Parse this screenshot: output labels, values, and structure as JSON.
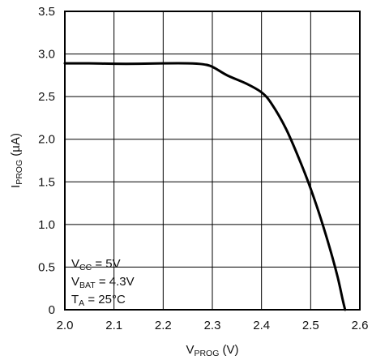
{
  "chart_data": {
    "type": "line",
    "title": "",
    "xlabel": {
      "main": "V",
      "sub": "PROG",
      "unit": " (V)"
    },
    "ylabel": {
      "main": "I",
      "sub": "PROG",
      "unit": " (µA)"
    },
    "xlim": [
      2.0,
      2.6
    ],
    "ylim": [
      0,
      3.5
    ],
    "x_ticks": [
      {
        "value": 2.0,
        "label": "2.0"
      },
      {
        "value": 2.1,
        "label": "2.1"
      },
      {
        "value": 2.2,
        "label": "2.2"
      },
      {
        "value": 2.3,
        "label": "2.3"
      },
      {
        "value": 2.4,
        "label": "2.4"
      },
      {
        "value": 2.5,
        "label": "2.5"
      },
      {
        "value": 2.6,
        "label": "2.6"
      }
    ],
    "y_ticks": [
      {
        "value": 0,
        "label": "0"
      },
      {
        "value": 0.5,
        "label": "0.5"
      },
      {
        "value": 1.0,
        "label": "1.0"
      },
      {
        "value": 1.5,
        "label": "1.5"
      },
      {
        "value": 2.0,
        "label": "2.0"
      },
      {
        "value": 2.5,
        "label": "2.5"
      },
      {
        "value": 3.0,
        "label": "3.0"
      },
      {
        "value": 3.5,
        "label": "3.5"
      }
    ],
    "grid": true,
    "series": [
      {
        "color": "#000000",
        "points": [
          {
            "x": 2.0,
            "y": 2.89
          },
          {
            "x": 2.05,
            "y": 2.89
          },
          {
            "x": 2.1,
            "y": 2.885
          },
          {
            "x": 2.15,
            "y": 2.885
          },
          {
            "x": 2.2,
            "y": 2.89
          },
          {
            "x": 2.25,
            "y": 2.89
          },
          {
            "x": 2.28,
            "y": 2.88
          },
          {
            "x": 2.3,
            "y": 2.85
          },
          {
            "x": 2.33,
            "y": 2.75
          },
          {
            "x": 2.37,
            "y": 2.65
          },
          {
            "x": 2.4,
            "y": 2.55
          },
          {
            "x": 2.42,
            "y": 2.42
          },
          {
            "x": 2.45,
            "y": 2.12
          },
          {
            "x": 2.48,
            "y": 1.72
          },
          {
            "x": 2.5,
            "y": 1.42
          },
          {
            "x": 2.52,
            "y": 1.08
          },
          {
            "x": 2.54,
            "y": 0.7
          },
          {
            "x": 2.555,
            "y": 0.38
          },
          {
            "x": 2.565,
            "y": 0.12
          },
          {
            "x": 2.57,
            "y": 0.0
          }
        ]
      }
    ],
    "annotations": [
      {
        "main": "V",
        "sub": "CC",
        "rest": " = 5V"
      },
      {
        "main": "V",
        "sub": "BAT",
        "rest": " = 4.3V"
      },
      {
        "main": "T",
        "sub": "A",
        "rest": " = 25°C"
      }
    ],
    "annotation_placement": "bottom-left"
  }
}
